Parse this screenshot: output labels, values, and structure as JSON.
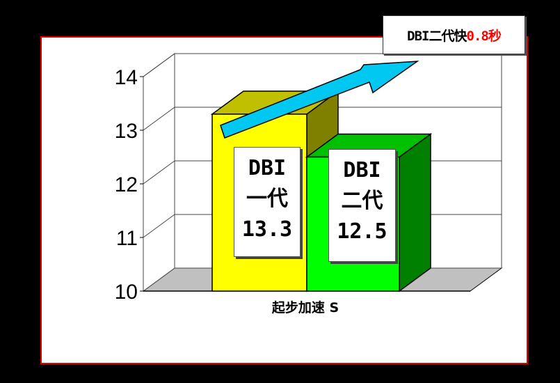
{
  "chart_data": {
    "type": "bar",
    "three_d": true,
    "categories": [
      "DBI一代",
      "DBI二代"
    ],
    "values": [
      13.3,
      12.5
    ],
    "colors": [
      "#ffff00",
      "#00ff00"
    ],
    "xlabel": "起步加速 S",
    "ylim": [
      10,
      14
    ],
    "yticks": [
      "10",
      "11",
      "12",
      "13",
      "14"
    ],
    "grid": true,
    "bar_labels": [
      {
        "line1": "DBI",
        "line2": "一代",
        "value": "13.3"
      },
      {
        "line1": "DBI",
        "line2": "二代",
        "value": "12.5"
      }
    ],
    "annotation": {
      "text": "DBI二代快",
      "highlight": "0.8秒",
      "highlight_color": "#ff0000"
    }
  }
}
